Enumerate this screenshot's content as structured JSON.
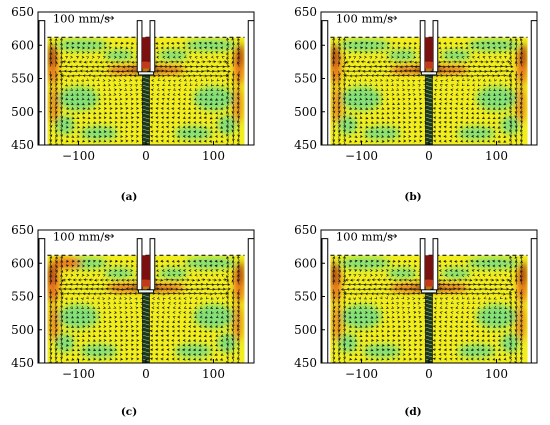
{
  "chart_data": [
    {
      "type": "vector-field",
      "caption": "(a)",
      "x_ticks": [
        -100,
        0,
        100
      ],
      "x_tick_labels": [
        "−100",
        "0",
        "100"
      ],
      "y_ticks": [
        450,
        500,
        550,
        600,
        650
      ],
      "y_tick_labels": [
        "450",
        "500",
        "550",
        "600",
        "650"
      ],
      "xlim": [
        -160,
        160
      ],
      "ylim": [
        450,
        650
      ],
      "reference_vector_label": "100 mm/s",
      "free_surface_level": 612,
      "jet_height": 563
    },
    {
      "type": "vector-field",
      "caption": "(b)",
      "x_ticks": [
        -100,
        0,
        100
      ],
      "x_tick_labels": [
        "−100",
        "0",
        "100"
      ],
      "y_ticks": [
        450,
        500,
        550,
        600,
        650
      ],
      "y_tick_labels": [
        "450",
        "500",
        "550",
        "600",
        "650"
      ],
      "xlim": [
        -160,
        160
      ],
      "ylim": [
        450,
        650
      ],
      "reference_vector_label": "100 mm/s",
      "free_surface_level": 612,
      "jet_height": 563
    },
    {
      "type": "vector-field",
      "caption": "(c)",
      "x_ticks": [
        -100,
        0,
        100
      ],
      "x_tick_labels": [
        "−100",
        "0",
        "100"
      ],
      "y_ticks": [
        450,
        500,
        550,
        600,
        650
      ],
      "y_tick_labels": [
        "450",
        "500",
        "550",
        "600",
        "650"
      ],
      "xlim": [
        -160,
        160
      ],
      "ylim": [
        450,
        650
      ],
      "reference_vector_label": "100 mm/s",
      "free_surface_level": 612,
      "jet_height": 563
    },
    {
      "type": "vector-field",
      "caption": "(d)",
      "x_ticks": [
        -100,
        0,
        100
      ],
      "x_tick_labels": [
        "−100",
        "0",
        "100"
      ],
      "y_ticks": [
        450,
        500,
        550,
        600,
        650
      ],
      "y_tick_labels": [
        "450",
        "500",
        "550",
        "600",
        "650"
      ],
      "xlim": [
        -160,
        160
      ],
      "ylim": [
        450,
        650
      ],
      "reference_vector_label": "100 mm/s",
      "free_surface_level": 612,
      "jet_height": 563
    }
  ],
  "colors": {
    "field_low": "#7ee07a",
    "field_mid": "#f2ee1e",
    "field_high": "#e8741c",
    "field_max": "#8a0d0a",
    "vector": "#111111",
    "nozzle": "#7a1010",
    "frame": "#000000"
  }
}
